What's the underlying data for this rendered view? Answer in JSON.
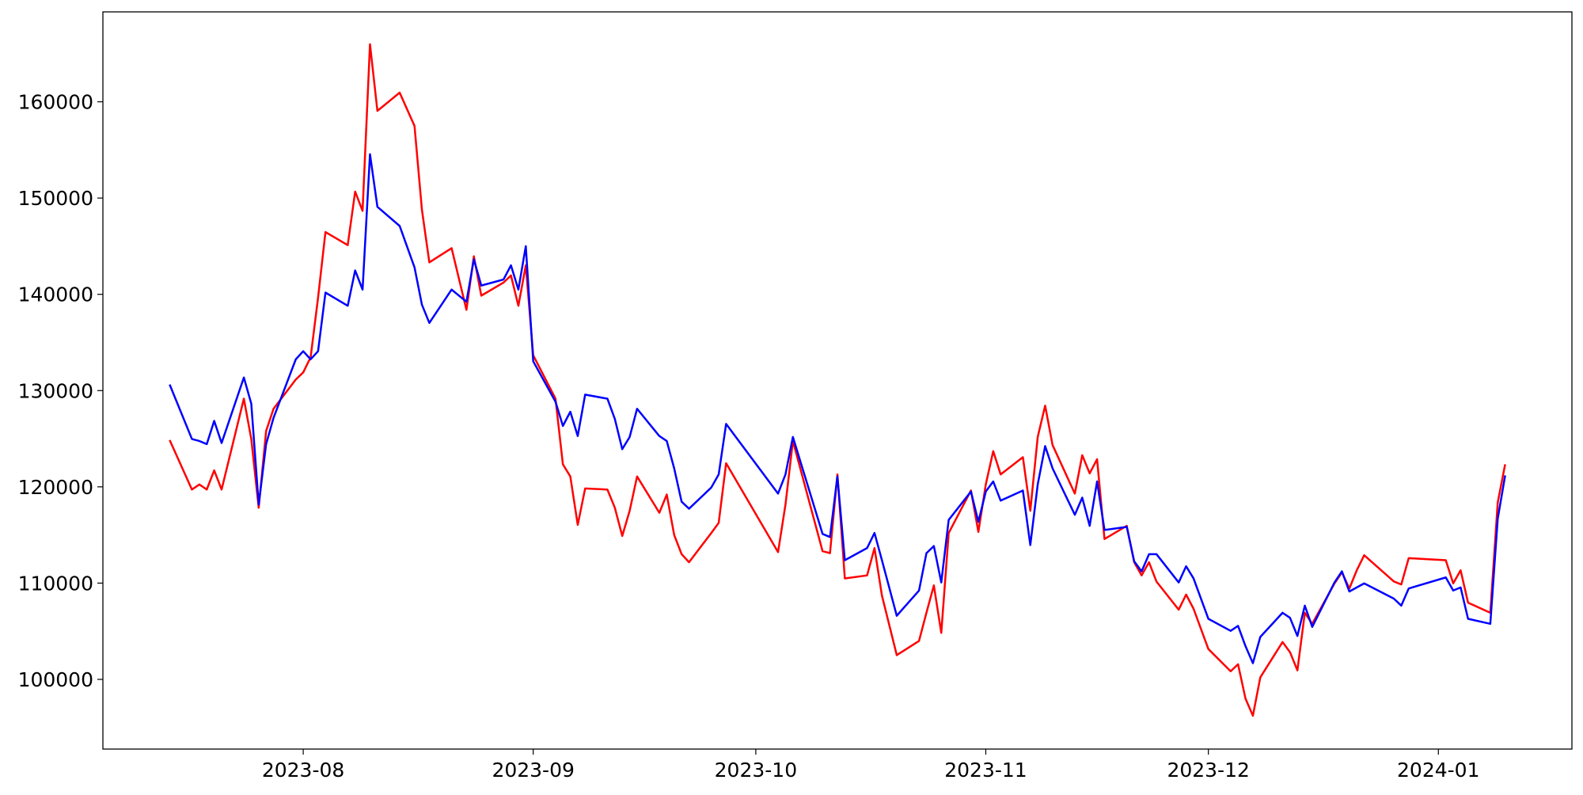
{
  "chart_data": {
    "type": "line",
    "x": [
      "2023-07-14",
      "2023-07-17",
      "2023-07-18",
      "2023-07-19",
      "2023-07-20",
      "2023-07-21",
      "2023-07-24",
      "2023-07-25",
      "2023-07-26",
      "2023-07-27",
      "2023-07-28",
      "2023-07-31",
      "2023-08-01",
      "2023-08-02",
      "2023-08-03",
      "2023-08-04",
      "2023-08-07",
      "2023-08-08",
      "2023-08-09",
      "2023-08-10",
      "2023-08-11",
      "2023-08-14",
      "2023-08-16",
      "2023-08-17",
      "2023-08-18",
      "2023-08-21",
      "2023-08-23",
      "2023-08-24",
      "2023-08-25",
      "2023-08-28",
      "2023-08-29",
      "2023-08-30",
      "2023-08-31",
      "2023-09-01",
      "2023-09-04",
      "2023-09-05",
      "2023-09-06",
      "2023-09-07",
      "2023-09-08",
      "2023-09-11",
      "2023-09-12",
      "2023-09-13",
      "2023-09-14",
      "2023-09-15",
      "2023-09-18",
      "2023-09-19",
      "2023-09-20",
      "2023-09-21",
      "2023-09-22",
      "2023-09-25",
      "2023-09-26",
      "2023-09-27",
      "2023-10-04",
      "2023-10-05",
      "2023-10-06",
      "2023-10-10",
      "2023-10-11",
      "2023-10-12",
      "2023-10-13",
      "2023-10-16",
      "2023-10-17",
      "2023-10-18",
      "2023-10-20",
      "2023-10-23",
      "2023-10-24",
      "2023-10-25",
      "2023-10-26",
      "2023-10-27",
      "2023-10-30",
      "2023-10-31",
      "2023-11-01",
      "2023-11-02",
      "2023-11-03",
      "2023-11-06",
      "2023-11-07",
      "2023-11-08",
      "2023-11-09",
      "2023-11-10",
      "2023-11-13",
      "2023-11-14",
      "2023-11-15",
      "2023-11-16",
      "2023-11-17",
      "2023-11-20",
      "2023-11-21",
      "2023-11-22",
      "2023-11-23",
      "2023-11-24",
      "2023-11-27",
      "2023-11-28",
      "2023-11-29",
      "2023-12-01",
      "2023-12-04",
      "2023-12-05",
      "2023-12-06",
      "2023-12-07",
      "2023-12-08",
      "2023-12-11",
      "2023-12-12",
      "2023-12-13",
      "2023-12-14",
      "2023-12-15",
      "2023-12-18",
      "2023-12-19",
      "2023-12-20",
      "2023-12-21",
      "2023-12-22",
      "2023-12-26",
      "2023-12-27",
      "2023-12-28",
      "2024-01-02",
      "2024-01-03",
      "2024-01-04",
      "2024-01-05",
      "2024-01-08",
      "2024-01-09",
      "2024-01-10"
    ],
    "series": [
      {
        "color": "red",
        "values": [
          124860,
          119720,
          120250,
          119720,
          121710,
          119720,
          129160,
          124970,
          117830,
          125800,
          128110,
          131150,
          131890,
          133460,
          139650,
          146470,
          145110,
          150670,
          148670,
          165980,
          159060,
          160950,
          157490,
          148780,
          143320,
          144790,
          138390,
          143950,
          139860,
          141220,
          141960,
          138810,
          143010,
          133670,
          129160,
          122340,
          121080,
          116050,
          119830,
          119720,
          117830,
          114900,
          117520,
          121080,
          117310,
          119200,
          115000,
          113010,
          112170,
          115210,
          116260,
          122450,
          113220,
          118150,
          124760,
          113320,
          113110,
          121290,
          110490,
          110800,
          113640,
          108710,
          102520,
          103990,
          106920,
          109760,
          104830,
          115210,
          119620,
          115320,
          120250,
          123710,
          121290,
          123080,
          117520,
          125180,
          128430,
          124340,
          119300,
          123290,
          121400,
          122870,
          114580,
          115950,
          112170,
          110800,
          112170,
          110170,
          107240,
          108810,
          107340,
          103150,
          100840,
          101570,
          98010,
          96220,
          100210,
          103880,
          102830,
          100940,
          106920,
          105770,
          109970,
          111120,
          109440,
          111330,
          112900,
          110170,
          109860,
          112590,
          112380,
          109970,
          111330,
          107970,
          106920,
          118360,
          122340
        ]
      },
      {
        "color": "blue",
        "values": [
          130630,
          124970,
          124760,
          124440,
          126850,
          124550,
          131360,
          128640,
          118150,
          124440,
          127170,
          133250,
          134090,
          133250,
          134090,
          140180,
          138810,
          142480,
          140490,
          154550,
          149090,
          147100,
          142800,
          138920,
          137030,
          140490,
          139230,
          143640,
          140910,
          141540,
          143010,
          140490,
          145000,
          133040,
          128850,
          126330,
          127800,
          125280,
          129580,
          129160,
          127060,
          123920,
          125180,
          128110,
          125280,
          124760,
          121920,
          118460,
          117730,
          119930,
          121290,
          126540,
          119300,
          121290,
          125180,
          115110,
          114790,
          121080,
          112380,
          113640,
          115210,
          112380,
          106610,
          109230,
          113110,
          113850,
          110070,
          116570,
          119510,
          116360,
          119510,
          120560,
          118570,
          119620,
          113950,
          120250,
          124230,
          121920,
          117100,
          118880,
          115950,
          120560,
          115520,
          115840,
          112270,
          111220,
          113010,
          113010,
          110070,
          111750,
          110490,
          106290,
          105040,
          105560,
          103460,
          101680,
          104410,
          106920,
          106400,
          104510,
          107660,
          105450,
          110070,
          111220,
          109130,
          109550,
          109970,
          108390,
          107660,
          109440,
          110590,
          109230,
          109550,
          106290,
          105770,
          116680,
          121190
        ]
      }
    ],
    "xlim": [
      "2023-07-05",
      "2024-01-19"
    ],
    "xticks": [
      {
        "value": "2023-08-01",
        "label": "2023-08"
      },
      {
        "value": "2023-09-01",
        "label": "2023-09"
      },
      {
        "value": "2023-10-01",
        "label": "2023-10"
      },
      {
        "value": "2023-11-01",
        "label": "2023-11"
      },
      {
        "value": "2023-12-01",
        "label": "2023-12"
      },
      {
        "value": "2024-01-01",
        "label": "2024-01"
      }
    ],
    "ylim": [
      92760,
      169340
    ],
    "yticks": [
      100000,
      110000,
      120000,
      130000,
      140000,
      150000,
      160000
    ]
  }
}
